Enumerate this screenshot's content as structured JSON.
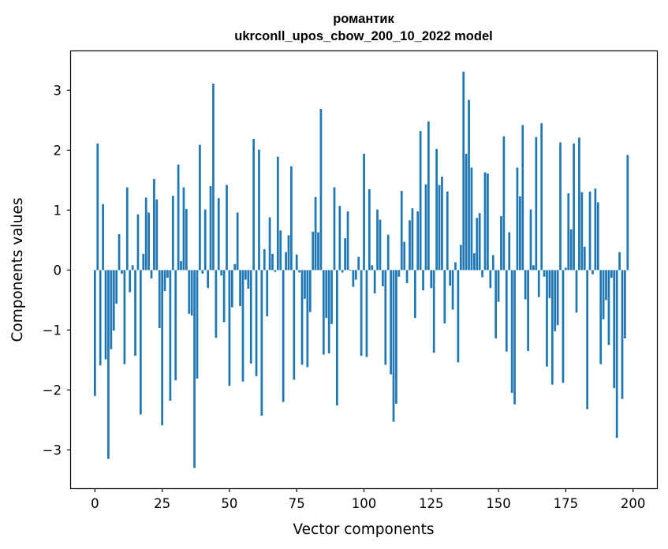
{
  "chart_data": {
    "type": "bar",
    "title_line1": "романтик",
    "title_line2": "ukrconll_upos_cbow_200_10_2022 model",
    "xlabel": "Vector components",
    "ylabel": "Components values",
    "xlim": [
      -8.9,
      208.9
    ],
    "ylim": [
      -3.64,
      3.65
    ],
    "xticks": [
      0,
      25,
      50,
      75,
      100,
      125,
      150,
      175,
      200
    ],
    "yticks": [
      -3,
      -2,
      -1,
      0,
      1,
      2,
      3
    ],
    "bar_color": "#1f77b4",
    "grid": false,
    "values": [
      -2.1,
      2.11,
      -1.59,
      1.1,
      -1.49,
      -3.15,
      -1.32,
      -1.01,
      -0.56,
      0.6,
      -0.06,
      -1.57,
      1.38,
      -0.37,
      0.08,
      -1.43,
      0.93,
      -2.41,
      0.27,
      1.21,
      0.96,
      -0.14,
      1.52,
      1.18,
      -0.97,
      -2.59,
      -0.35,
      -0.13,
      -2.18,
      1.24,
      -1.84,
      1.76,
      0.15,
      1.38,
      1.02,
      -0.73,
      -0.76,
      -3.3,
      -1.81,
      2.09,
      -0.06,
      1.01,
      -0.3,
      1.4,
      3.11,
      -1.13,
      1.2,
      -0.09,
      -0.87,
      1.42,
      -1.93,
      -0.62,
      0.1,
      0.96,
      -0.6,
      -1.86,
      -0.16,
      -0.31,
      -1.56,
      2.19,
      -1.77,
      2.01,
      -2.43,
      0.35,
      -0.77,
      0.88,
      0.27,
      -0.03,
      1.89,
      0.66,
      -2.2,
      0.3,
      0.58,
      1.73,
      -1.83,
      0.26,
      -0.04,
      -1.58,
      -0.48,
      -1.62,
      -0.7,
      0.64,
      1.22,
      0.63,
      2.69,
      -1.41,
      -0.8,
      -1.39,
      -0.9,
      1.38,
      -2.26,
      1.07,
      -0.04,
      0.53,
      0.98,
      -0.01,
      -0.28,
      -0.16,
      0.22,
      -1.43,
      1.94,
      -1.45,
      1.35,
      0.08,
      -0.39,
      1.01,
      0.84,
      -0.27,
      -1.58,
      0.59,
      -1.74,
      -2.53,
      -2.23,
      -0.11,
      1.32,
      0.47,
      -0.22,
      0.83,
      1.03,
      -0.8,
      0.98,
      2.32,
      -0.34,
      1.43,
      2.48,
      -0.3,
      -1.38,
      2.02,
      1.42,
      1.56,
      -0.89,
      1.31,
      -0.26,
      -0.66,
      0.13,
      -1.54,
      0.42,
      3.31,
      1.94,
      2.84,
      1.71,
      0.28,
      0.87,
      0.95,
      -0.12,
      1.63,
      1.61,
      -0.3,
      0.25,
      -1.14,
      -0.53,
      0.9,
      2.23,
      -1.36,
      0.63,
      -2.05,
      -2.24,
      1.71,
      1.23,
      2.42,
      -0.49,
      -1.35,
      1.01,
      0.08,
      2.22,
      -0.45,
      2.45,
      -0.11,
      -1.61,
      -0.47,
      -1.91,
      -1.02,
      -0.92,
      2.13,
      -1.88,
      0.04,
      1.28,
      0.68,
      2.11,
      -0.71,
      2.21,
      1.3,
      0.39,
      -2.32,
      1.31,
      -0.07,
      1.36,
      1.13,
      -1.57,
      -0.82,
      -0.5,
      -1.25,
      -0.13,
      -1.97,
      -2.8,
      0.3,
      -2.15,
      -1.14,
      1.92,
      0.0
    ]
  }
}
